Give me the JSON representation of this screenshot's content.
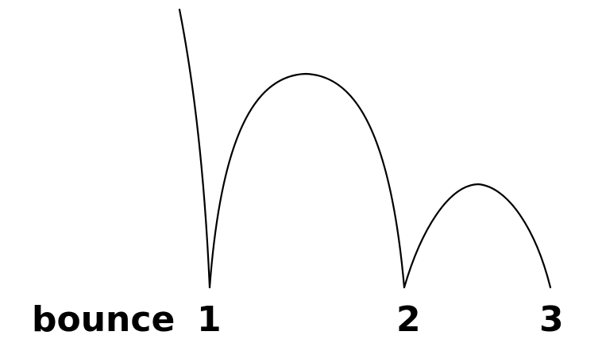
{
  "diagram": {
    "caption_label": "bounce",
    "bounces": [
      {
        "label": "1"
      },
      {
        "label": "2"
      },
      {
        "label": "3"
      }
    ],
    "line_color": "#000000"
  }
}
